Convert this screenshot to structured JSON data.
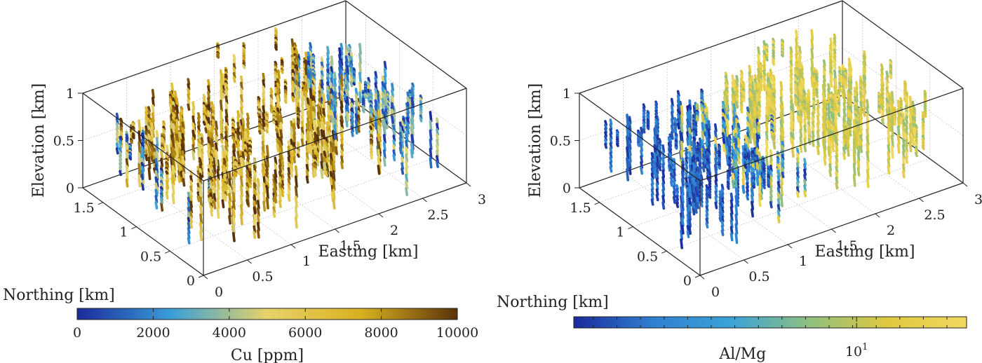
{
  "chart_data": [
    {
      "type": "scatter",
      "subtype": "3d-drillhole",
      "xlabel": "Easting [km]",
      "ylabel": "Northing [km]",
      "zlabel": "Elevation [km]",
      "xticks": [
        "0",
        "0.5",
        "1",
        "1.5",
        "2",
        "2.5",
        "3"
      ],
      "yticks": [
        "0",
        "0.5",
        "1",
        "1.5"
      ],
      "zticks": [
        "0",
        "0.5",
        "1"
      ],
      "xlim": [
        0,
        3
      ],
      "ylim": [
        0,
        1.8
      ],
      "zlim": [
        0,
        1
      ],
      "grid": true,
      "colorbar": {
        "label": "Cu [ppm]",
        "ticks": [
          "0",
          "2000",
          "4000",
          "6000",
          "8000",
          "10000"
        ],
        "range": [
          0,
          10000
        ],
        "scale": "linear",
        "colors": [
          "#1b2a9c",
          "#3a9fd8",
          "#e7d36a",
          "#d8b020",
          "#5a3208"
        ]
      }
    },
    {
      "type": "scatter",
      "subtype": "3d-drillhole",
      "xlabel": "Easting [km]",
      "ylabel": "Northing [km]",
      "zlabel": "Elevation [km]",
      "xticks": [
        "0",
        "0.5",
        "1",
        "1.5",
        "2",
        "2.5",
        "3"
      ],
      "yticks": [
        "0",
        "0.5",
        "1",
        "1.5"
      ],
      "zticks": [
        "0",
        "0.5",
        "1"
      ],
      "xlim": [
        0,
        3
      ],
      "ylim": [
        0,
        1.8
      ],
      "zlim": [
        0,
        1
      ],
      "grid": true,
      "colorbar": {
        "label": "Al/Mg",
        "tick_base": "10",
        "tick_exp": "1",
        "scale": "log",
        "colors": [
          "#1b2a9c",
          "#2f7fd0",
          "#3aa3d8",
          "#8fbf80",
          "#e0c840",
          "#f0d860"
        ]
      }
    }
  ]
}
